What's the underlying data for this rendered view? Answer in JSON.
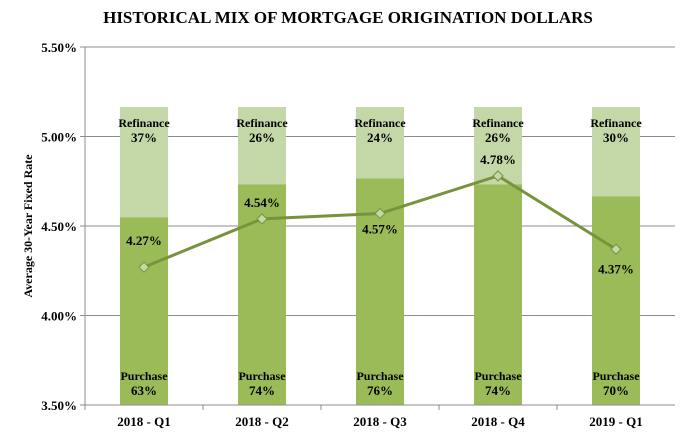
{
  "chart_data": {
    "type": "bar",
    "title": "HISTORICAL MIX OF MORTGAGE ORIGINATION DOLLARS",
    "ylabel": "Average  30-Year  Fixed Rate",
    "xlabel": "",
    "ylim": [
      3.5,
      5.5
    ],
    "yticks": [
      "3.50%",
      "4.00%",
      "4.50%",
      "5.00%",
      "5.50%"
    ],
    "ytick_values": [
      3.5,
      4.0,
      4.5,
      5.0,
      5.5
    ],
    "categories": [
      "2018 - Q1",
      "2018 - Q2",
      "2018 - Q3",
      "2018 - Q4",
      "2019 - Q1"
    ],
    "stacked_share": {
      "series": [
        {
          "name": "Purchase",
          "values": [
            63,
            74,
            76,
            74,
            70
          ],
          "labels": [
            "63%",
            "74%",
            "76%",
            "74%",
            "70%"
          ],
          "color": "#9bbb59"
        },
        {
          "name": "Refinance",
          "values": [
            37,
            26,
            24,
            26,
            30
          ],
          "labels": [
            "37%",
            "26%",
            "24%",
            "26%",
            "30%"
          ],
          "color": "#c4d7a6"
        }
      ]
    },
    "line": {
      "values": [
        4.27,
        4.54,
        4.57,
        4.78,
        4.37
      ],
      "labels": [
        "4.27%",
        "4.54%",
        "4.57%",
        "4.78%",
        "4.37%"
      ],
      "color": "#77933c",
      "marker": "diamond"
    },
    "grid": true,
    "legend": "none"
  }
}
